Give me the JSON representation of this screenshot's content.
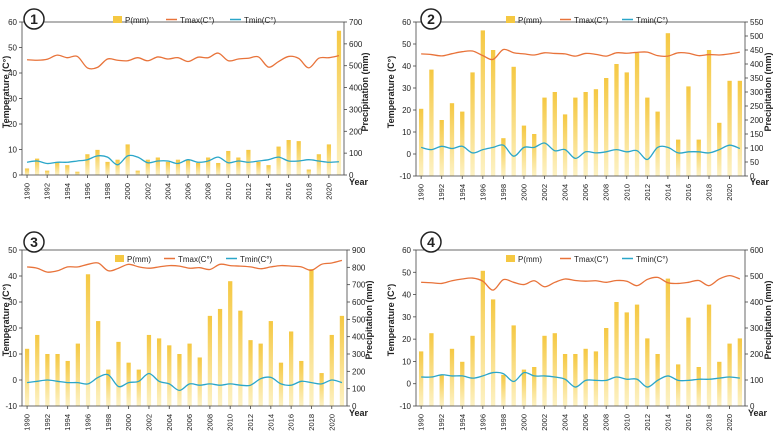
{
  "colors": {
    "bar": "#f5c842",
    "bar_fade": "#fdf2c4",
    "tmax": "#e8733a",
    "tmin": "#2aa6c9",
    "axis": "#444444",
    "grid": "#d9d9d9"
  },
  "chart_data": [
    {
      "type": "bar",
      "panel": "1",
      "title": "",
      "xlabel": "Year",
      "ylabel": "Temperature (C°)",
      "y2label": "Precipitation (mm)",
      "years": [
        1990,
        1991,
        1992,
        1993,
        1994,
        1995,
        1996,
        1997,
        1998,
        1999,
        2000,
        2001,
        2002,
        2003,
        2004,
        2005,
        2006,
        2007,
        2008,
        2009,
        2010,
        2011,
        2012,
        2013,
        2014,
        2015,
        2016,
        2017,
        2018,
        2019,
        2020,
        2021
      ],
      "xticks": [
        "1990",
        "1992",
        "1994",
        "1996",
        "1998",
        "2000",
        "2002",
        "2004",
        "2006",
        "2008",
        "2010",
        "2012",
        "2014",
        "2016",
        "2018",
        "2020"
      ],
      "ylim": [
        0,
        60
      ],
      "yticks": [
        0,
        10,
        20,
        30,
        40,
        50,
        60
      ],
      "y2lim": [
        0,
        700
      ],
      "y2ticks": [
        0,
        100,
        200,
        300,
        400,
        500,
        600,
        700
      ],
      "series": [
        {
          "name": "P(mm)",
          "axis": "right",
          "kind": "bar",
          "values": [
            30,
            75,
            20,
            60,
            45,
            15,
            95,
            115,
            60,
            70,
            140,
            20,
            70,
            80,
            60,
            70,
            70,
            55,
            80,
            55,
            110,
            80,
            115,
            60,
            45,
            130,
            160,
            155,
            25,
            95,
            140,
            660
          ]
        },
        {
          "name": "Tmax(C°)",
          "axis": "left",
          "kind": "line",
          "values": [
            45.2,
            45.0,
            45.4,
            47.0,
            46.0,
            46.5,
            42.0,
            42.2,
            45.5,
            45.0,
            44.8,
            46.0,
            44.8,
            46.3,
            45.5,
            46.0,
            44.5,
            46.2,
            46.0,
            47.8,
            44.8,
            45.5,
            45.8,
            46.3,
            42.3,
            44.5,
            46.5,
            45.7,
            42.0,
            45.8,
            46.0,
            46.8
          ]
        },
        {
          "name": "Tmin(C°)",
          "axis": "left",
          "kind": "line",
          "values": [
            5.0,
            5.5,
            4.5,
            5.0,
            5.0,
            5.5,
            6.0,
            7.5,
            7.0,
            4.0,
            7.5,
            7.0,
            4.8,
            5.5,
            5.5,
            4.5,
            6.0,
            5.0,
            5.5,
            7.0,
            4.8,
            5.5,
            5.0,
            5.5,
            6.0,
            7.0,
            5.5,
            5.5,
            6.0,
            5.5,
            5.0,
            5.2
          ]
        }
      ]
    },
    {
      "type": "bar",
      "panel": "2",
      "title": "",
      "xlabel": "Year",
      "ylabel": "Temperature (C°)",
      "y2label": "Precipitation (mm)",
      "years": [
        1990,
        1991,
        1992,
        1993,
        1994,
        1995,
        1996,
        1997,
        1998,
        1999,
        2000,
        2001,
        2002,
        2003,
        2004,
        2005,
        2006,
        2007,
        2008,
        2009,
        2010,
        2011,
        2012,
        2013,
        2014,
        2015,
        2016,
        2017,
        2018,
        2019,
        2020,
        2021
      ],
      "xticks": [
        "1990",
        "1992",
        "1994",
        "1996",
        "1998",
        "2000",
        "2002",
        "2004",
        "2006",
        "2008",
        "2010",
        "2012",
        "2014",
        "2016",
        "2018",
        "2020"
      ],
      "ylim": [
        -10,
        60
      ],
      "yticks": [
        -10,
        0,
        10,
        20,
        30,
        40,
        50,
        60
      ],
      "y2lim": [
        0,
        550
      ],
      "y2ticks": [
        0,
        50,
        100,
        150,
        200,
        250,
        300,
        350,
        400,
        450,
        500,
        550
      ],
      "series": [
        {
          "name": "P(mm)",
          "axis": "right",
          "kind": "bar",
          "values": [
            240,
            380,
            200,
            260,
            230,
            370,
            520,
            450,
            135,
            390,
            180,
            150,
            280,
            300,
            220,
            280,
            300,
            310,
            350,
            400,
            370,
            440,
            280,
            230,
            510,
            130,
            320,
            130,
            450,
            190,
            340,
            340
          ]
        },
        {
          "name": "Tmax(C°)",
          "axis": "left",
          "kind": "line",
          "values": [
            45.5,
            45.2,
            44.6,
            45.6,
            46.5,
            46.8,
            44.7,
            43.0,
            47.5,
            46.0,
            45.5,
            45.0,
            46.0,
            45.7,
            45.5,
            44.5,
            45.7,
            45.3,
            44.5,
            46.0,
            45.8,
            46.2,
            46.3,
            44.7,
            44.5,
            46.0,
            45.8,
            44.7,
            45.2,
            45.0,
            45.5,
            46.3
          ]
        },
        {
          "name": "Tmin(C°)",
          "axis": "left",
          "kind": "line",
          "values": [
            3,
            2,
            3.5,
            2.5,
            3.5,
            0.5,
            2,
            3,
            4,
            -1,
            3,
            3,
            5,
            1.5,
            2,
            -2,
            1,
            0.5,
            1,
            2,
            1,
            1.5,
            -2.5,
            3,
            3,
            0.5,
            1,
            1,
            0.5,
            2,
            4,
            2.5
          ]
        }
      ]
    },
    {
      "type": "bar",
      "panel": "3",
      "title": "",
      "xlabel": "Year",
      "ylabel": "Temperature (C°)",
      "y2label": "Precipitation (mm)",
      "years": [
        1990,
        1991,
        1992,
        1993,
        1994,
        1995,
        1996,
        1997,
        1998,
        1999,
        2000,
        2001,
        2002,
        2003,
        2004,
        2005,
        2006,
        2007,
        2008,
        2009,
        2010,
        2011,
        2012,
        2013,
        2014,
        2015,
        2016,
        2017,
        2018,
        2019,
        2020,
        2021
      ],
      "xticks": [
        "1990",
        "1992",
        "1994",
        "1996",
        "1998",
        "2000",
        "2002",
        "2004",
        "2006",
        "2008",
        "2010",
        "2012",
        "2014",
        "2016",
        "2018",
        "2020"
      ],
      "ylim": [
        -10,
        50
      ],
      "yticks": [
        -10,
        0,
        10,
        20,
        30,
        40,
        50
      ],
      "y2lim": [
        0,
        900
      ],
      "y2ticks": [
        0,
        100,
        200,
        300,
        400,
        500,
        600,
        700,
        800,
        900
      ],
      "series": [
        {
          "name": "P(mm)",
          "axis": "right",
          "kind": "bar",
          "values": [
            330,
            410,
            300,
            300,
            260,
            360,
            760,
            490,
            210,
            370,
            250,
            210,
            410,
            390,
            350,
            300,
            360,
            280,
            520,
            560,
            720,
            550,
            380,
            360,
            490,
            250,
            430,
            260,
            790,
            190,
            410,
            520
          ]
        },
        {
          "name": "Tmax(C°)",
          "axis": "left",
          "kind": "line",
          "values": [
            43.5,
            43.0,
            41.5,
            42.0,
            43.5,
            43.5,
            44.5,
            45.0,
            42.0,
            43.0,
            44.5,
            43.5,
            43.0,
            43.5,
            44.0,
            43.8,
            43.0,
            43.2,
            42.5,
            44.5,
            44.0,
            43.8,
            43.5,
            42.8,
            43.5,
            44.0,
            43.8,
            43.5,
            42.2,
            44.5,
            45.0,
            46.0
          ]
        },
        {
          "name": "Tmin(C°)",
          "axis": "left",
          "kind": "line",
          "values": [
            -1,
            -0.5,
            0,
            -0.5,
            -1,
            -1,
            -1.5,
            1,
            2,
            -2.5,
            -1,
            -0.5,
            2.5,
            -0.5,
            -1.5,
            -4,
            -1.5,
            -2,
            -1.5,
            -2,
            -1.5,
            -2,
            -2,
            0.5,
            1,
            -1.5,
            -2,
            -0.5,
            -1,
            -1.5,
            0,
            -1
          ]
        }
      ]
    },
    {
      "type": "bar",
      "panel": "4",
      "title": "",
      "xlabel": "Year",
      "ylabel": "Temperature (C°)",
      "y2label": "Precipitation (mm)",
      "years": [
        1990,
        1991,
        1992,
        1993,
        1994,
        1995,
        1996,
        1997,
        1998,
        1999,
        2000,
        2001,
        2002,
        2003,
        2004,
        2005,
        2006,
        2007,
        2008,
        2009,
        2010,
        2011,
        2012,
        2013,
        2014,
        2015,
        2016,
        2017,
        2018,
        2019,
        2020,
        2021
      ],
      "xticks": [
        "1990",
        "1992",
        "1994",
        "1996",
        "1998",
        "2000",
        "2002",
        "2004",
        "2006",
        "2008",
        "2010",
        "2012",
        "2014",
        "2016",
        "2018",
        "2020"
      ],
      "ylim": [
        -10,
        60
      ],
      "yticks": [
        -10,
        0,
        10,
        20,
        30,
        40,
        50,
        60
      ],
      "y2lim": [
        0,
        600
      ],
      "y2ticks": [
        0,
        100,
        200,
        300,
        400,
        500,
        600
      ],
      "series": [
        {
          "name": "P(mm)",
          "axis": "right",
          "kind": "bar",
          "values": [
            210,
            280,
            120,
            220,
            170,
            270,
            520,
            410,
            120,
            310,
            140,
            150,
            270,
            280,
            200,
            200,
            220,
            210,
            300,
            400,
            360,
            390,
            260,
            200,
            490,
            160,
            340,
            150,
            390,
            170,
            240,
            260
          ]
        },
        {
          "name": "Tmax(C°)",
          "axis": "left",
          "kind": "line",
          "values": [
            45.5,
            45.3,
            45.0,
            46.2,
            47.0,
            47.4,
            46.0,
            42.0,
            46.7,
            45.5,
            44.5,
            46.2,
            43.5,
            45.5,
            47.0,
            46.3,
            46.0,
            46.2,
            45.5,
            46.3,
            46.0,
            44.0,
            46.8,
            47.7,
            45.3,
            45.0,
            45.5,
            46.3,
            44.0,
            47.0,
            48.5,
            47.0
          ]
        },
        {
          "name": "Tmin(C°)",
          "axis": "left",
          "kind": "line",
          "values": [
            3,
            3,
            4,
            3.5,
            3.5,
            2.5,
            3.5,
            5,
            4.5,
            1,
            5,
            3.5,
            3.5,
            3,
            2,
            -1.5,
            1.5,
            1.5,
            1.5,
            3,
            2,
            2,
            -1.5,
            1.5,
            3.5,
            1.5,
            1.5,
            2,
            2,
            2.5,
            3,
            2.5
          ]
        }
      ]
    }
  ]
}
